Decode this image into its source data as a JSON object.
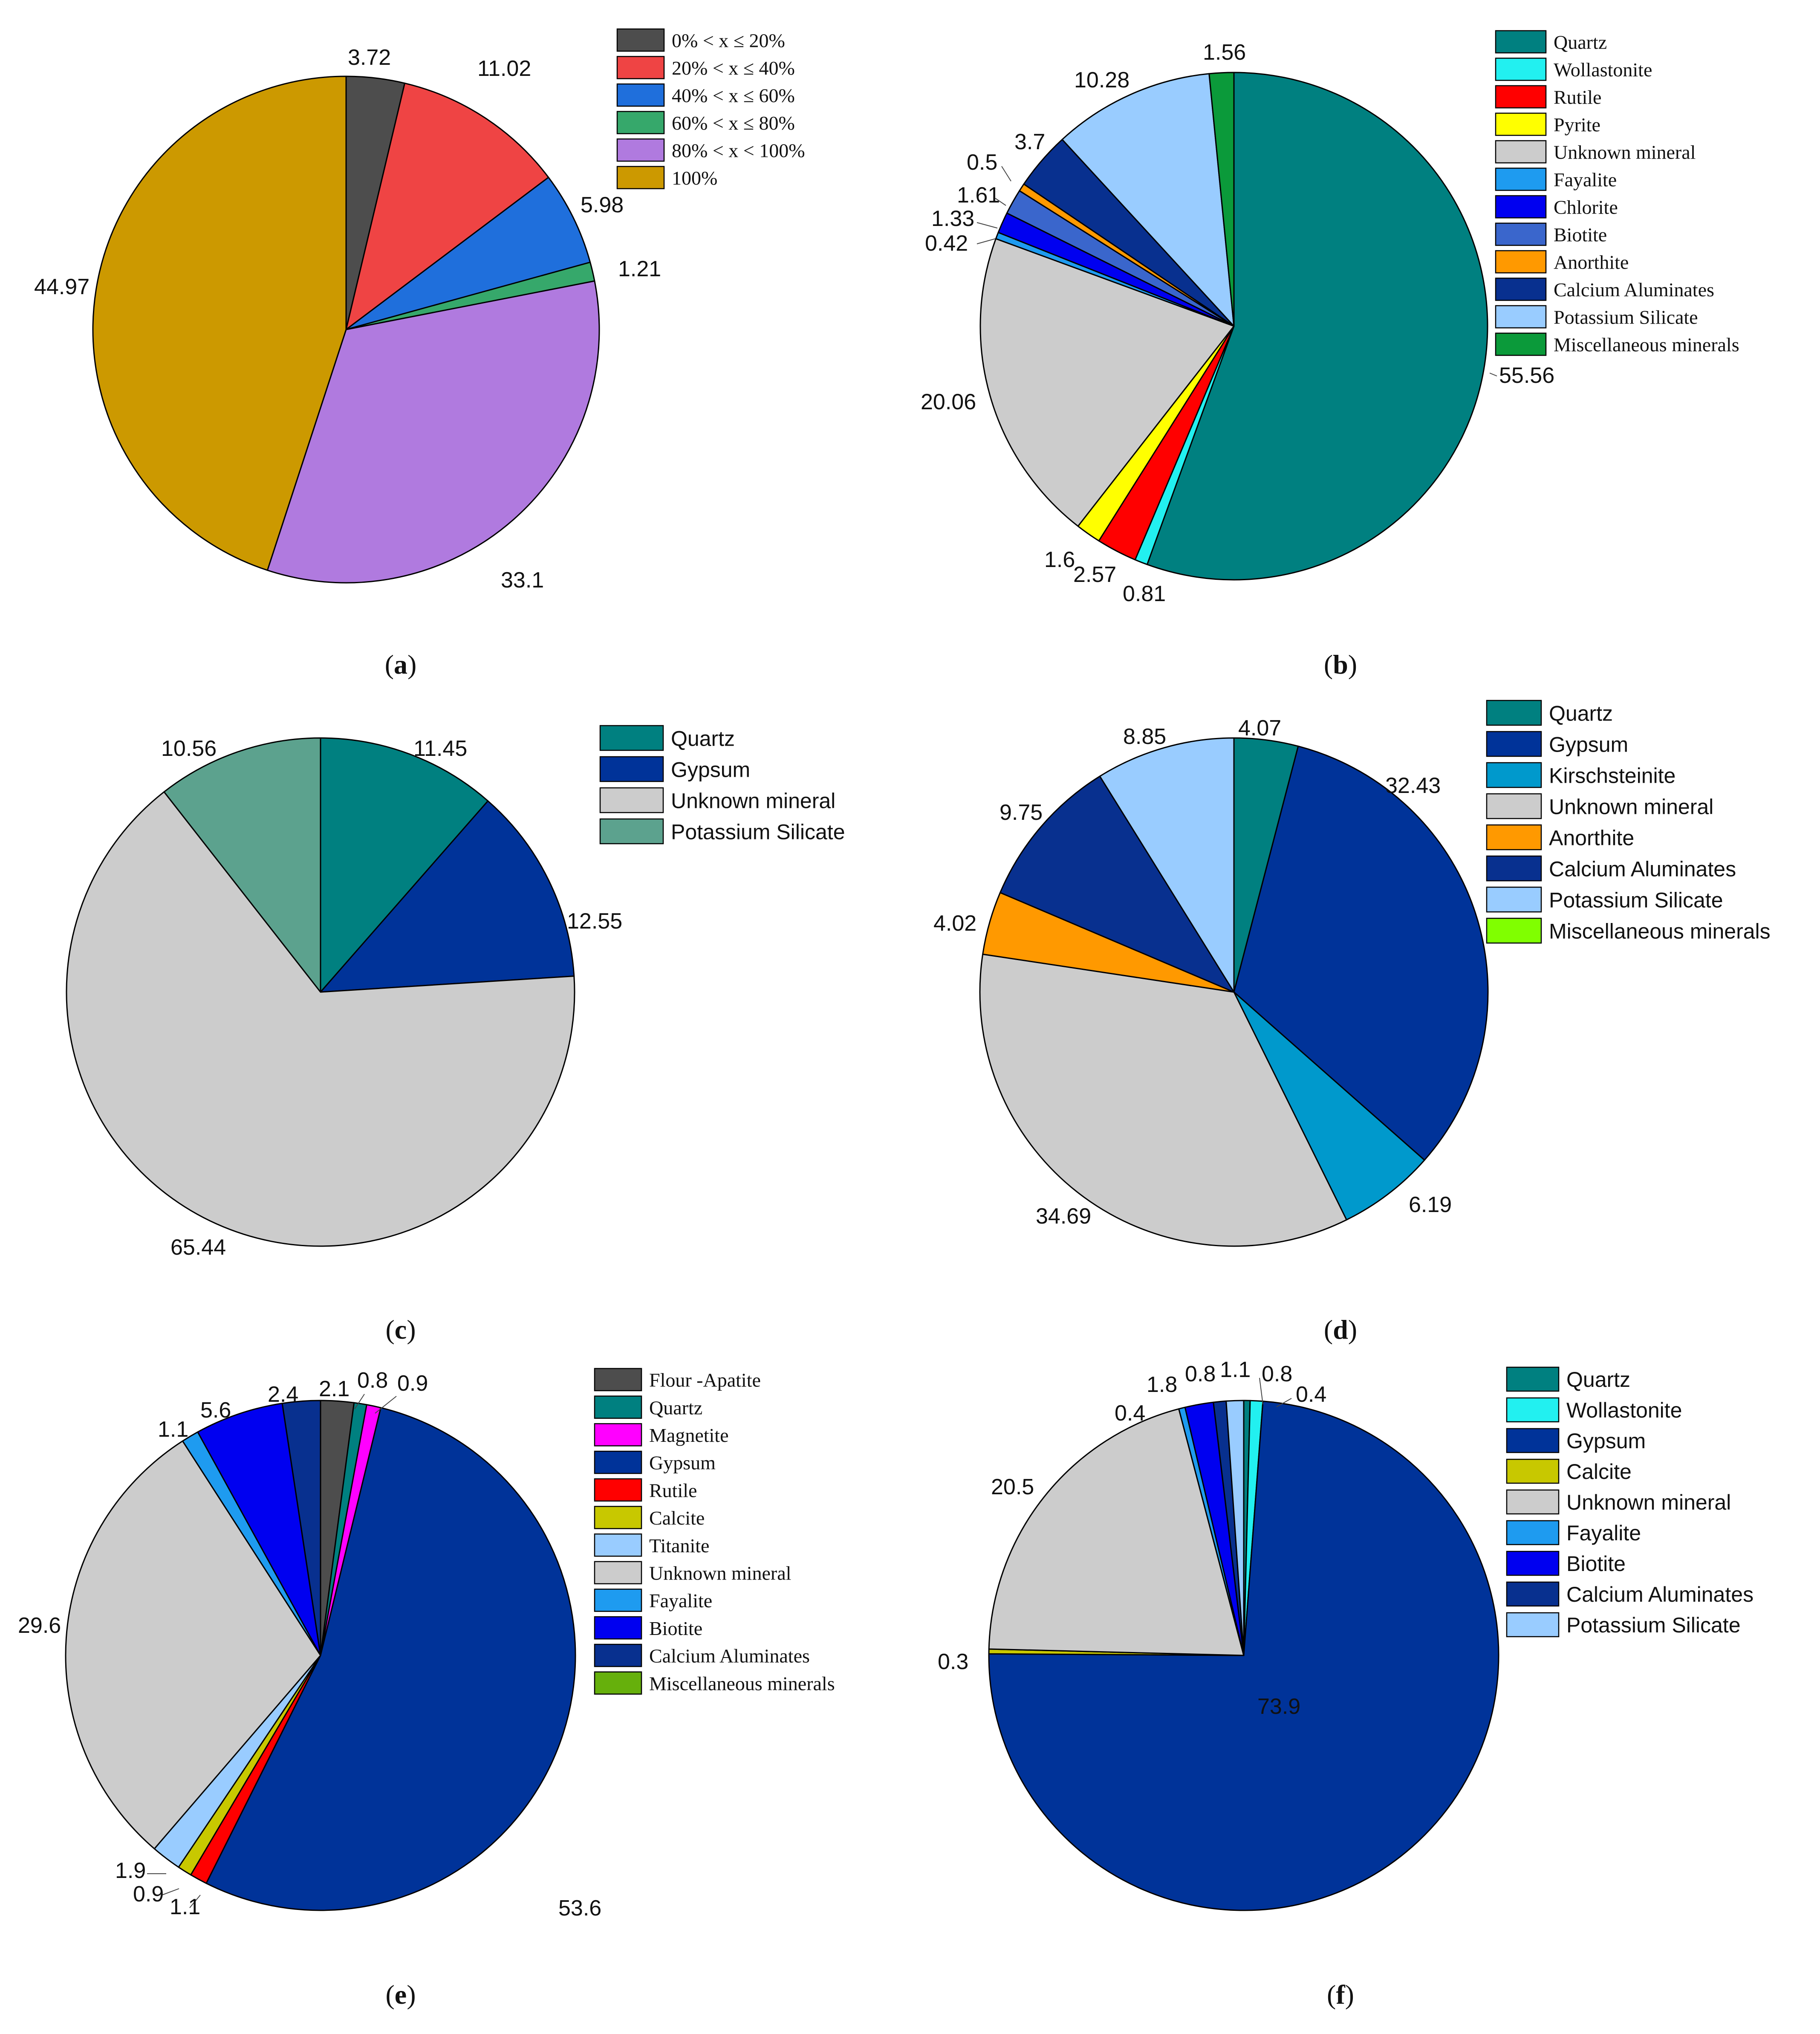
{
  "chart_data": [
    {
      "id": "a",
      "type": "pie",
      "caption": "a",
      "labelFont": "sans",
      "legendFont": "serif",
      "slices": [
        {
          "label": "0% < x ≤ 20%",
          "value": 3.72,
          "valueText": "3.72",
          "color": "#4d4d4d"
        },
        {
          "label": "20% < x ≤  40%",
          "value": 11.02,
          "valueText": "11.02",
          "color": "#ef4444"
        },
        {
          "label": "40% < x ≤  60%",
          "value": 5.98,
          "valueText": "5.98",
          "color": "#1f6fdc"
        },
        {
          "label": "60% < x ≤  80%",
          "value": 1.21,
          "valueText": "1.21",
          "color": "#36a86b"
        },
        {
          "label": "80% < x < 100%",
          "value": 33.1,
          "valueText": "33.1",
          "color": "#b07adf"
        },
        {
          "label": "100%",
          "value": 44.97,
          "valueText": "44.97",
          "color": "#cc9900"
        }
      ]
    },
    {
      "id": "b",
      "type": "pie",
      "caption": "b",
      "labelFont": "sans",
      "legendFont": "serif",
      "slices": [
        {
          "label": "Quartz",
          "value": 55.56,
          "valueText": "55.56",
          "color": "#008080"
        },
        {
          "label": "Wollastonite",
          "value": 0.81,
          "valueText": "0.81",
          "color": "#22f0f0"
        },
        {
          "label": "Rutile",
          "value": 2.57,
          "valueText": "2.57",
          "color": "#ff0000"
        },
        {
          "label": "Pyrite",
          "value": 1.6,
          "valueText": "1.6",
          "color": "#ffff00"
        },
        {
          "label": "Unknown mineral",
          "value": 20.06,
          "valueText": "20.06",
          "color": "#cccccc"
        },
        {
          "label": "Fayalite",
          "value": 0.42,
          "valueText": "0.42",
          "color": "#1e9bf0"
        },
        {
          "label": "Chlorite",
          "value": 1.33,
          "valueText": "1.33",
          "color": "#0000f0"
        },
        {
          "label": "Biotite",
          "value": 1.61,
          "valueText": "1.61",
          "color": "#3a66cc"
        },
        {
          "label": "Anorthite",
          "value": 0.5,
          "valueText": "0.5",
          "color": "#ff9900"
        },
        {
          "label": "Calcium Aluminates",
          "value": 3.7,
          "valueText": "3.7",
          "color": "#08308f"
        },
        {
          "label": "Potassium Silicate",
          "value": 10.28,
          "valueText": "10.28",
          "color": "#99ccff"
        },
        {
          "label": "Miscellaneous minerals",
          "value": 1.56,
          "valueText": "1.56",
          "color": "#0b9a3a"
        }
      ]
    },
    {
      "id": "c",
      "type": "pie",
      "caption": "c",
      "labelFont": "sans",
      "legendFont": "sans",
      "slices": [
        {
          "label": "Quartz",
          "value": 11.45,
          "valueText": "11.45",
          "color": "#008080"
        },
        {
          "label": "Gypsum",
          "value": 12.55,
          "valueText": "12.55",
          "color": "#003399"
        },
        {
          "label": "Unknown mineral",
          "value": 65.44,
          "valueText": "65.44",
          "color": "#cccccc"
        },
        {
          "label": "Potassium Silicate",
          "value": 10.56,
          "valueText": "10.56",
          "color": "#5ca28e"
        }
      ]
    },
    {
      "id": "d",
      "type": "pie",
      "caption": "d",
      "labelFont": "sans",
      "legendFont": "sans",
      "slices": [
        {
          "label": "Quartz",
          "value": 4.07,
          "valueText": "4.07",
          "color": "#008080"
        },
        {
          "label": "Gypsum",
          "value": 32.43,
          "valueText": "32.43",
          "color": "#003399"
        },
        {
          "label": "Kirschsteinite",
          "value": 6.19,
          "valueText": "6.19",
          "color": "#0099cc"
        },
        {
          "label": "Unknown mineral",
          "value": 34.69,
          "valueText": "34.69",
          "color": "#cccccc"
        },
        {
          "label": "Anorthite",
          "value": 4.02,
          "valueText": "4.02",
          "color": "#ff9900"
        },
        {
          "label": "Calcium Aluminates",
          "value": 9.75,
          "valueText": "9.75",
          "color": "#08308f"
        },
        {
          "label": "Potassium Silicate",
          "value": 8.85,
          "valueText": "8.85",
          "color": "#99ccff"
        },
        {
          "label": "Miscellaneous minerals",
          "value": 0,
          "valueText": "",
          "color": "#80ff00"
        }
      ]
    },
    {
      "id": "e",
      "type": "pie",
      "caption": "e",
      "labelFont": "sans",
      "legendFont": "serif",
      "slices": [
        {
          "label": "Flour -Apatite",
          "value": 2.1,
          "valueText": "2.1",
          "color": "#4d4d4d"
        },
        {
          "label": "Quartz",
          "value": 0.8,
          "valueText": "0.8",
          "color": "#008080"
        },
        {
          "label": "Magnetite",
          "value": 0.9,
          "valueText": "0.9",
          "color": "#ff00ff"
        },
        {
          "label": "Gypsum",
          "value": 53.6,
          "valueText": "53.6",
          "color": "#003399"
        },
        {
          "label": "Rutile",
          "value": 1.1,
          "valueText": "1.1",
          "color": "#ff0000"
        },
        {
          "label": "Calcite",
          "value": 0.9,
          "valueText": "0.9",
          "color": "#c8c800"
        },
        {
          "label": "Titanite",
          "value": 1.9,
          "valueText": "1.9",
          "color": "#99ccff"
        },
        {
          "label": "Unknown mineral",
          "value": 29.6,
          "valueText": "29.6",
          "color": "#cccccc"
        },
        {
          "label": "Fayalite",
          "value": 1.1,
          "valueText": "1.1",
          "color": "#1e9bf0"
        },
        {
          "label": "Biotite",
          "value": 5.6,
          "valueText": "5.6",
          "color": "#0000f0"
        },
        {
          "label": "Calcium Aluminates",
          "value": 2.4,
          "valueText": "2.4",
          "color": "#08308f"
        },
        {
          "label": "Miscellaneous minerals",
          "value": 0,
          "valueText": "",
          "color": "#66b00c"
        }
      ]
    },
    {
      "id": "f",
      "type": "pie",
      "caption": "f",
      "labelFont": "sans",
      "legendFont": "sans",
      "slices": [
        {
          "label": "Quartz",
          "value": 0.4,
          "valueText": "0.4",
          "color": "#008080"
        },
        {
          "label": "Wollastonite",
          "value": 0.8,
          "valueText": "0.8",
          "color": "#22f0f0"
        },
        {
          "label": "Gypsum",
          "value": 73.9,
          "valueText": "73.9",
          "color": "#003399"
        },
        {
          "label": "Calcite",
          "value": 0.3,
          "valueText": "0.3",
          "color": "#c8c800"
        },
        {
          "label": "Unknown mineral",
          "value": 20.5,
          "valueText": "20.5",
          "color": "#cccccc"
        },
        {
          "label": "Fayalite",
          "value": 0.4,
          "valueText": "0.4",
          "color": "#1e9bf0"
        },
        {
          "label": "Biotite",
          "value": 1.8,
          "valueText": "1.8",
          "color": "#0000f0"
        },
        {
          "label": "Calcium Aluminates",
          "value": 0.8,
          "valueText": "0.8",
          "color": "#08308f"
        },
        {
          "label": "Potassium Silicate",
          "value": 1.1,
          "valueText": "1.1",
          "color": "#99ccff"
        }
      ]
    }
  ]
}
